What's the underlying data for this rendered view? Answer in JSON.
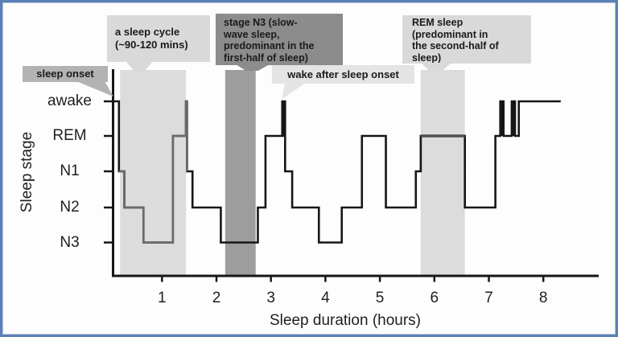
{
  "figure": {
    "x_axis_title": "Sleep duration (hours)",
    "y_axis_title": "Sleep stage",
    "stages": [
      "awake",
      "REM",
      "N1",
      "N2",
      "N3"
    ],
    "hours": [
      "1",
      "2",
      "3",
      "4",
      "5",
      "6",
      "7",
      "8"
    ]
  },
  "callouts": {
    "sleep_onset": "sleep onset",
    "sleep_cycle": "a sleep cycle\n(~90-120 mins)",
    "n3": "stage N3 (slow-\nwave sleep,\npredominant in the\nfirst-half of sleep)",
    "wake": "wake after sleep onset",
    "rem": "REM sleep\n(predominant in\nthe second-half of\nsleep)"
  },
  "chart_data": {
    "type": "line",
    "subtype": "hypnogram-step",
    "title": "",
    "xlabel": "Sleep duration (hours)",
    "ylabel": "Sleep stage",
    "y_categories": [
      "awake",
      "REM",
      "N1",
      "N2",
      "N3"
    ],
    "xlim": [
      0,
      8.6
    ],
    "x_ticks": [
      1,
      2,
      3,
      4,
      5,
      6,
      7,
      8
    ],
    "epochs": [
      [
        0.12,
        0.21,
        "awake"
      ],
      [
        0.21,
        0.31,
        "N1"
      ],
      [
        0.31,
        0.66,
        "N2"
      ],
      [
        0.66,
        1.2,
        "N3"
      ],
      [
        1.2,
        1.44,
        "REM"
      ],
      [
        1.44,
        1.46,
        "awake"
      ],
      [
        1.46,
        1.56,
        "N1"
      ],
      [
        1.56,
        2.08,
        "N2"
      ],
      [
        2.08,
        2.76,
        "N3"
      ],
      [
        2.76,
        2.9,
        "N2"
      ],
      [
        2.9,
        3.22,
        "REM"
      ],
      [
        3.22,
        3.26,
        "awake"
      ],
      [
        3.26,
        3.39,
        "N1"
      ],
      [
        3.39,
        3.88,
        "N2"
      ],
      [
        3.88,
        4.3,
        "N3"
      ],
      [
        4.3,
        4.67,
        "N2"
      ],
      [
        4.67,
        5.11,
        "REM"
      ],
      [
        5.11,
        5.66,
        "N2"
      ],
      [
        5.66,
        5.75,
        "N1"
      ],
      [
        5.75,
        6.56,
        "REM"
      ],
      [
        6.56,
        7.12,
        "N2"
      ],
      [
        7.12,
        7.21,
        "REM"
      ],
      [
        7.21,
        7.27,
        "awake"
      ],
      [
        7.27,
        7.42,
        "REM"
      ],
      [
        7.42,
        7.48,
        "awake"
      ],
      [
        7.48,
        7.55,
        "REM"
      ],
      [
        7.55,
        8.32,
        "awake"
      ]
    ],
    "first_cycle_gray_epochs": [
      1,
      5
    ],
    "gray_rem_start": 5.75,
    "wake_spikes_hours": [
      3.225,
      7.24,
      7.45
    ],
    "bands": [
      {
        "from": 0.23,
        "to": 1.44,
        "shade": "light",
        "label": "a sleep cycle"
      },
      {
        "from": 2.16,
        "to": 2.72,
        "shade": "dark",
        "label": "stage N3"
      },
      {
        "from": 5.75,
        "to": 6.56,
        "shade": "light",
        "label": "REM sleep"
      }
    ],
    "colors": {
      "line": "#161616",
      "first_cycle_line": "#6a6a6a",
      "rem_gray_line": "#4f4f4f",
      "band_light": "#dcdcdc",
      "band_dark": "#9d9d9d",
      "box_light": "#d9d9d9",
      "box_mid": "#b3b3b3",
      "box_pale": "#e4e4e4",
      "box_dark": "#8c8c8c",
      "frame_border": "#5b80b6"
    }
  }
}
